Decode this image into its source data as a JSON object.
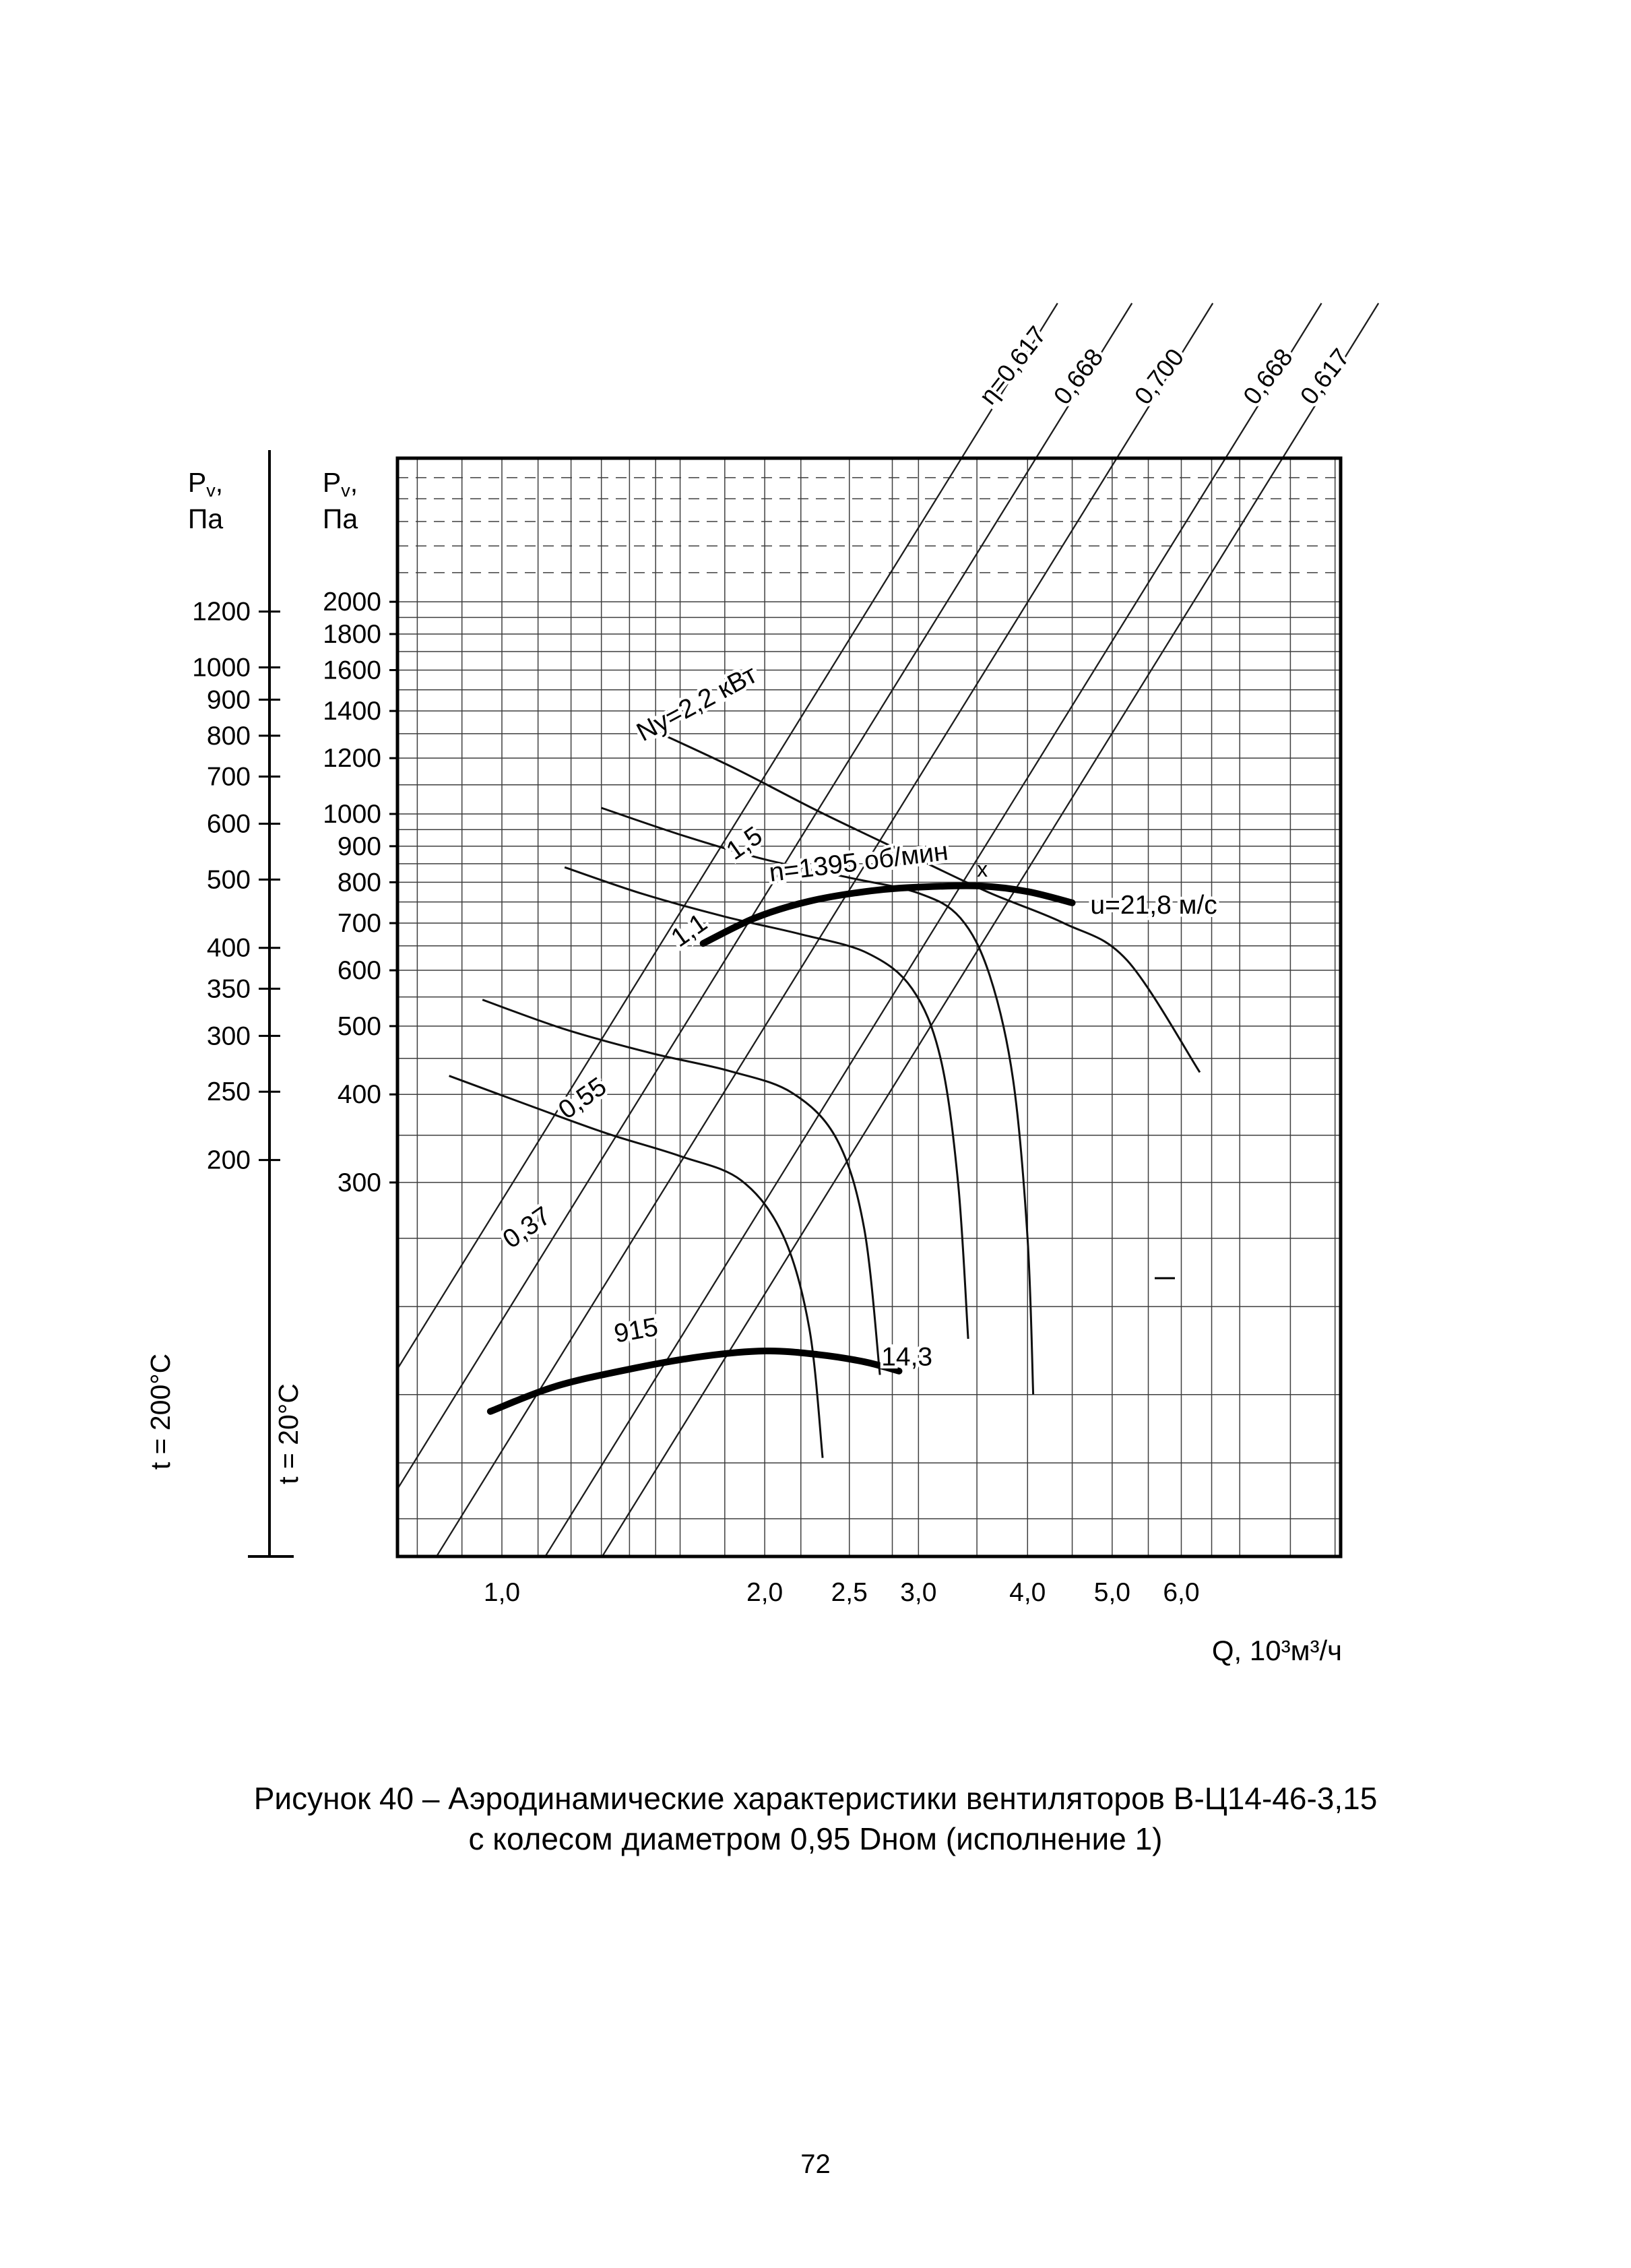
{
  "page": {
    "number": "72"
  },
  "caption": {
    "line1": "Рисунок 40 – Аэродинамические характеристики вентиляторов В-Ц14-46-3,15",
    "line2": "с колесом диаметром 0,95 Dном (исполнение 1)"
  },
  "chart_data": {
    "type": "line",
    "x_axis": {
      "label": "Q, 10³м³/ч",
      "scale": "log",
      "range": [
        0.759,
        9.13
      ],
      "ticks": [
        {
          "v": 1.0,
          "label": "1,0"
        },
        {
          "v": 2.0,
          "label": "2,0"
        },
        {
          "v": 2.5,
          "label": "2,5"
        },
        {
          "v": 3.0,
          "label": "3,0"
        },
        {
          "v": 4.0,
          "label": "4,0"
        },
        {
          "v": 5.0,
          "label": "5,0"
        },
        {
          "v": 6.0,
          "label": "6,0"
        }
      ],
      "grid": [
        0.8,
        0.9,
        1.0,
        1.1,
        1.2,
        1.3,
        1.4,
        1.5,
        1.6,
        1.8,
        2.0,
        2.2,
        2.5,
        2.8,
        3.0,
        3.5,
        4.0,
        4.5,
        5.0,
        5.5,
        6.0,
        6.5,
        7.0,
        8.0,
        9.0
      ]
    },
    "y_axis_t20": {
      "header_main": "P",
      "header_sub": "v",
      "header_comma": ",",
      "header_unit": "Па",
      "temp_label": "t = 20°C",
      "scale": "log",
      "range": [
        88,
        3200
      ],
      "ticks": [
        2000,
        1800,
        1600,
        1400,
        1200,
        1000,
        900,
        800,
        700,
        600,
        500,
        400,
        300
      ],
      "grid": [
        100,
        120,
        150,
        200,
        250,
        300,
        350,
        400,
        450,
        500,
        550,
        600,
        650,
        700,
        750,
        800,
        850,
        900,
        950,
        1000,
        1100,
        1200,
        1300,
        1400,
        1500,
        1600,
        1700,
        1800,
        1900,
        2000,
        2200,
        2400,
        2600,
        2800,
        3000
      ]
    },
    "y_axis_t200": {
      "temp_label": "t = 200°C",
      "ratio_to_t20": 0.6195,
      "ticks": [
        1200,
        1000,
        900,
        800,
        700,
        600,
        500,
        400,
        350,
        300,
        250,
        200
      ]
    },
    "efficiency_lines": {
      "ref_pressure": 780,
      "exponent": 2,
      "lines": [
        {
          "label": "η=0,617",
          "q_ref": 1.66
        },
        {
          "label": "0,668",
          "q_ref": 2.02
        },
        {
          "label": "0,700",
          "q_ref": 2.5
        },
        {
          "label": "0,668",
          "q_ref": 3.33
        },
        {
          "label": "0,617",
          "q_ref": 3.87
        }
      ]
    },
    "power_curves": [
      {
        "label": "Nу=2,2 кВт",
        "power_kw": 2.2,
        "points": [
          [
            1.5,
            1310
          ],
          [
            1.85,
            1160
          ],
          [
            2.3,
            1010
          ],
          [
            2.9,
            880
          ],
          [
            3.6,
            775
          ],
          [
            4.4,
            700
          ],
          [
            5.2,
            620
          ],
          [
            6.3,
            430
          ]
        ],
        "label_at": {
          "q": 1.69,
          "p": 1400,
          "rot": -28,
          "anchor": "middle"
        }
      },
      {
        "label": "1,5",
        "power_kw": 1.5,
        "points": [
          [
            1.3,
            1020
          ],
          [
            1.62,
            930
          ],
          [
            2.0,
            862
          ],
          [
            2.5,
            812
          ],
          [
            3.0,
            772
          ],
          [
            3.35,
            712
          ],
          [
            3.62,
            590
          ],
          [
            3.85,
            420
          ],
          [
            4.0,
            250
          ],
          [
            4.06,
            150
          ]
        ],
        "label_at": {
          "q": 1.92,
          "p": 888,
          "rot": -35,
          "anchor": "middle"
        }
      },
      {
        "label": "1,1",
        "power_kw": 1.1,
        "points": [
          [
            1.18,
            840
          ],
          [
            1.45,
            770
          ],
          [
            1.8,
            715
          ],
          [
            2.2,
            675
          ],
          [
            2.62,
            635
          ],
          [
            2.95,
            565
          ],
          [
            3.18,
            450
          ],
          [
            3.33,
            300
          ],
          [
            3.42,
            180
          ]
        ],
        "label_at": {
          "q": 1.66,
          "p": 668,
          "rot": -35,
          "anchor": "middle"
        }
      },
      {
        "label": "0,55",
        "power_kw": 0.55,
        "points": [
          [
            0.95,
            545
          ],
          [
            1.18,
            495
          ],
          [
            1.48,
            458
          ],
          [
            1.82,
            432
          ],
          [
            2.15,
            402
          ],
          [
            2.42,
            345
          ],
          [
            2.6,
            258
          ],
          [
            2.71,
            160
          ]
        ],
        "label_at": {
          "q": 1.253,
          "p": 386,
          "rot": -35,
          "anchor": "middle"
        }
      },
      {
        "label": "0,37",
        "power_kw": 0.37,
        "points": [
          [
            0.87,
            425
          ],
          [
            1.08,
            385
          ],
          [
            1.32,
            352
          ],
          [
            1.6,
            327
          ],
          [
            1.88,
            302
          ],
          [
            2.1,
            252
          ],
          [
            2.25,
            186
          ],
          [
            2.33,
            122
          ]
        ],
        "label_at": {
          "q": 1.082,
          "p": 253,
          "rot": -35,
          "anchor": "middle"
        }
      }
    ],
    "speed_curves": [
      {
        "label": "n=1395 об/мин",
        "rpm": 1395,
        "tip_label": "u=21,8 м/с",
        "points": [
          [
            1.7,
            655
          ],
          [
            1.95,
            712
          ],
          [
            2.25,
            752
          ],
          [
            2.65,
            778
          ],
          [
            3.05,
            788
          ],
          [
            3.55,
            790
          ],
          [
            4.0,
            776
          ],
          [
            4.5,
            748
          ]
        ],
        "label_at": {
          "q": 2.03,
          "p": 802,
          "rot": -7,
          "anchor": "start"
        },
        "tip_at": {
          "q": 4.72,
          "p": 722,
          "anchor": "start"
        },
        "marker": [
          3.55,
          815
        ]
      },
      {
        "label": "915",
        "rpm": 915,
        "tip_label": "14,3",
        "points": [
          [
            0.97,
            142
          ],
          [
            1.15,
            154
          ],
          [
            1.4,
            163
          ],
          [
            1.7,
            170
          ],
          [
            2.0,
            173
          ],
          [
            2.3,
            171
          ],
          [
            2.6,
            167
          ],
          [
            2.85,
            162
          ]
        ],
        "label_at": {
          "q": 1.43,
          "p": 180,
          "rot": -10,
          "anchor": "middle"
        },
        "tip_at": {
          "q": 2.72,
          "p": 165,
          "anchor": "start"
        }
      }
    ]
  }
}
